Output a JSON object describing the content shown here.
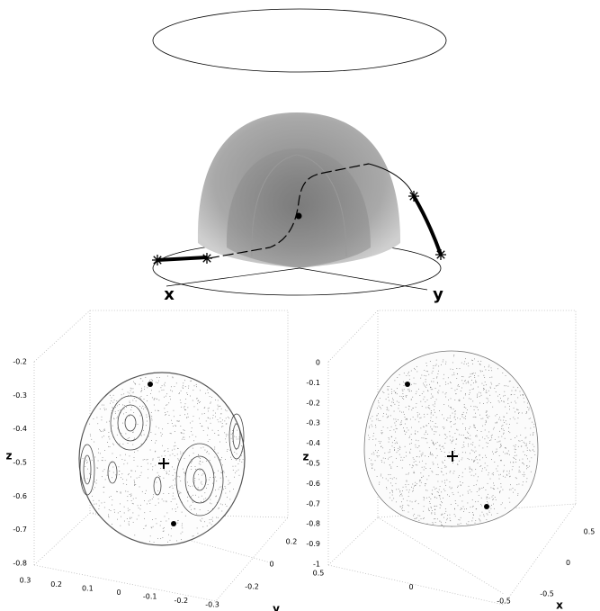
{
  "top_diagram": {
    "axis_labels": [
      "x",
      "y"
    ]
  },
  "left_plot": {
    "z_label": "z",
    "z_ticks": [
      "-0.2",
      "-0.3",
      "-0.4",
      "-0.5",
      "-0.6",
      "-0.7",
      "-0.8"
    ],
    "x_ticks": [
      "0.3",
      "0.2",
      "0.1",
      "0",
      "-0.1",
      "-0.2",
      "-0.3"
    ],
    "y_ticks": [
      "0.2",
      "0",
      "-0.2"
    ],
    "y_label": "y"
  },
  "right_plot": {
    "z_label": "z",
    "z_ticks": [
      "0",
      "-0.1",
      "-0.2",
      "-0.3",
      "-0.4",
      "-0.5",
      "-0.6",
      "-0.7",
      "-0.8",
      "-0.9",
      "-1"
    ],
    "y_ticks": [
      "0.5",
      "0",
      "-0.5"
    ],
    "x_ticks": [
      "0.5",
      "0",
      "-0.5"
    ],
    "x_label": "x"
  }
}
